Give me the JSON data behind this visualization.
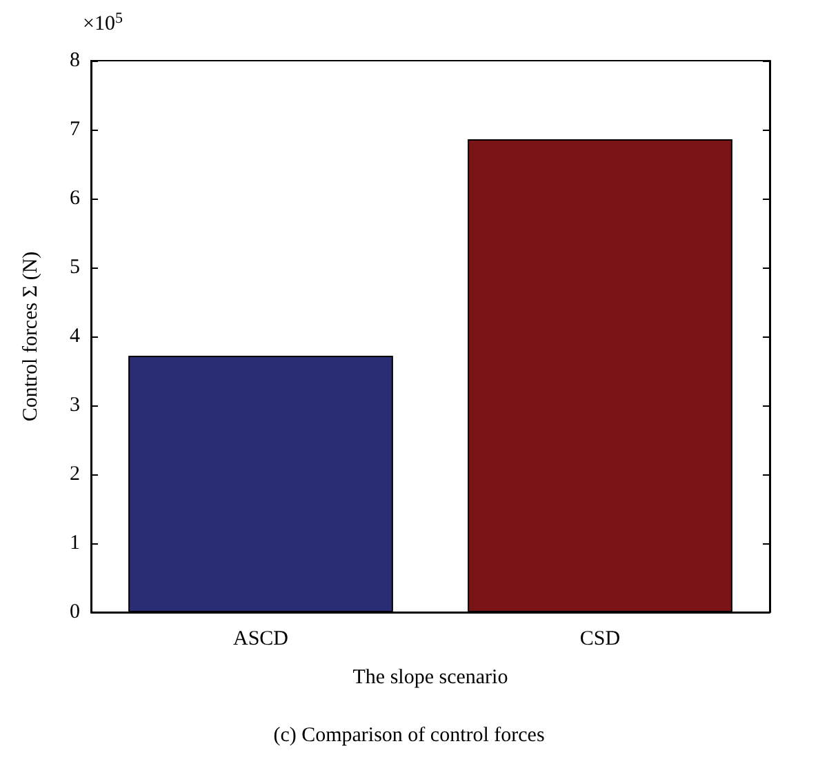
{
  "chart_data": {
    "type": "bar",
    "xlabel": "The slope scenario",
    "ylabel": "Control forces Σ (N)",
    "categories": [
      "ASCD",
      "CSD"
    ],
    "values": [
      3.72,
      6.86
    ],
    "colors": [
      "#2b2d74",
      "#7a1416"
    ],
    "ylim": [
      0,
      8
    ],
    "yticks": [
      0,
      1,
      2,
      3,
      4,
      5,
      6,
      7,
      8
    ],
    "grid": false,
    "annotations": [
      "×10$^{5}$",
      "(c) Comparison of control forces"
    ]
  }
}
